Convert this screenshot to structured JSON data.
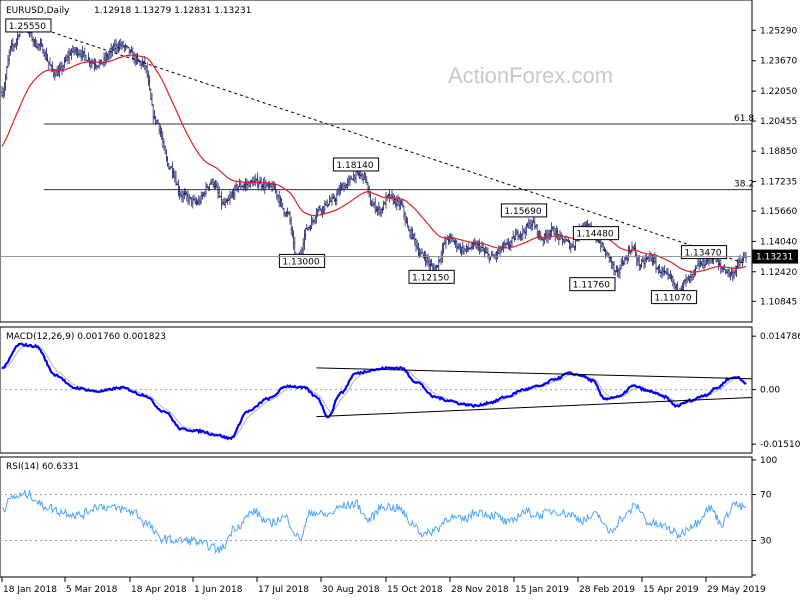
{
  "chart_data": [
    {
      "type": "candlestick",
      "panel": "price",
      "symbol": "EURUSD,Daily",
      "ohlc_text": "1.12918 1.13279 1.12831 1.13231",
      "current_price": 1.13231,
      "current_price_label": "1.13231",
      "ylim": [
        1.0985,
        1.268
      ],
      "y_ticks": [
        "1.25290",
        "1.23670",
        "1.22050",
        "1.20455",
        "1.18850",
        "1.17235",
        "1.15660",
        "1.14040",
        "1.12420",
        "1.10845"
      ],
      "x_ticks": [
        "18 Jan 2018",
        "5 Mar 2018",
        "18 Apr 2018",
        "1 Jun 2018",
        "17 Jul 2018",
        "30 Aug 2018",
        "15 Oct 2018",
        "28 Nov 2018",
        "15 Jan 2019",
        "28 Feb 2019",
        "15 Apr 2019",
        "29 May 2019"
      ],
      "fib_levels": [
        {
          "label": "61.8",
          "value": 1.203
        },
        {
          "label": "38.2",
          "value": 1.168
        }
      ],
      "trendline": {
        "from": {
          "bar": 18,
          "value": 1.257
        },
        "to": {
          "bar": 620,
          "value": 1.1285
        }
      },
      "annotations": [
        {
          "label": "1.25550",
          "bar": 22,
          "value": 1.2555
        },
        {
          "label": "1.13000",
          "bar": 250,
          "value": 1.13
        },
        {
          "label": "1.18140",
          "bar": 295,
          "value": 1.1814
        },
        {
          "label": "1.12150",
          "bar": 358,
          "value": 1.1215
        },
        {
          "label": "1.15690",
          "bar": 435,
          "value": 1.1569
        },
        {
          "label": "1.14480",
          "bar": 495,
          "value": 1.1448
        },
        {
          "label": "1.11760",
          "bar": 492,
          "value": 1.1176
        },
        {
          "label": "1.13470",
          "bar": 585,
          "value": 1.1347
        },
        {
          "label": "1.11070",
          "bar": 560,
          "value": 1.1107
        }
      ],
      "anchors": [
        [
          0,
          1.22
        ],
        [
          8,
          1.244
        ],
        [
          18,
          1.2555
        ],
        [
          30,
          1.245
        ],
        [
          45,
          1.23
        ],
        [
          60,
          1.242
        ],
        [
          80,
          1.235
        ],
        [
          98,
          1.245
        ],
        [
          118,
          1.235
        ],
        [
          128,
          1.205
        ],
        [
          140,
          1.18
        ],
        [
          150,
          1.165
        ],
        [
          162,
          1.161
        ],
        [
          175,
          1.172
        ],
        [
          185,
          1.16
        ],
        [
          198,
          1.17
        ],
        [
          212,
          1.172
        ],
        [
          225,
          1.169
        ],
        [
          238,
          1.155
        ],
        [
          246,
          1.13
        ],
        [
          255,
          1.148
        ],
        [
          265,
          1.158
        ],
        [
          275,
          1.162
        ],
        [
          285,
          1.17
        ],
        [
          295,
          1.176
        ],
        [
          302,
          1.175
        ],
        [
          308,
          1.16
        ],
        [
          315,
          1.157
        ],
        [
          322,
          1.164
        ],
        [
          332,
          1.16
        ],
        [
          340,
          1.145
        ],
        [
          350,
          1.133
        ],
        [
          360,
          1.126
        ],
        [
          372,
          1.142
        ],
        [
          385,
          1.136
        ],
        [
          395,
          1.138
        ],
        [
          408,
          1.132
        ],
        [
          420,
          1.138
        ],
        [
          432,
          1.145
        ],
        [
          442,
          1.15
        ],
        [
          450,
          1.142
        ],
        [
          458,
          1.146
        ],
        [
          468,
          1.141
        ],
        [
          475,
          1.138
        ],
        [
          485,
          1.15
        ],
        [
          495,
          1.142
        ],
        [
          505,
          1.133
        ],
        [
          512,
          1.123
        ],
        [
          518,
          1.13
        ],
        [
          525,
          1.137
        ],
        [
          532,
          1.128
        ],
        [
          540,
          1.132
        ],
        [
          548,
          1.125
        ],
        [
          556,
          1.121
        ],
        [
          563,
          1.115
        ],
        [
          572,
          1.12
        ],
        [
          582,
          1.128
        ],
        [
          592,
          1.132
        ],
        [
          600,
          1.126
        ],
        [
          608,
          1.123
        ],
        [
          615,
          1.129
        ],
        [
          620,
          1.1323
        ]
      ]
    },
    {
      "type": "line",
      "panel": "macd",
      "title": "MACD(12,26,9) 0.001760 0.001823",
      "ylim": [
        -0.017,
        0.0165
      ],
      "y_ticks": [
        "0.014786",
        "0.00",
        "-0.015107"
      ],
      "zero_label": "0.00",
      "macd_anchors": [
        [
          0,
          0.006
        ],
        [
          15,
          0.0125
        ],
        [
          28,
          0.012
        ],
        [
          45,
          0.004
        ],
        [
          60,
          0.0005
        ],
        [
          80,
          -0.0005
        ],
        [
          100,
          0.0005
        ],
        [
          118,
          -0.0015
        ],
        [
          135,
          -0.006
        ],
        [
          150,
          -0.011
        ],
        [
          165,
          -0.0115
        ],
        [
          178,
          -0.0125
        ],
        [
          190,
          -0.0135
        ],
        [
          205,
          -0.006
        ],
        [
          222,
          -0.0025
        ],
        [
          238,
          0.001
        ],
        [
          252,
          0.0005
        ],
        [
          262,
          -0.002
        ],
        [
          272,
          -0.0075
        ],
        [
          282,
          -0.001
        ],
        [
          295,
          0.0045
        ],
        [
          310,
          0.0055
        ],
        [
          322,
          0.006
        ],
        [
          332,
          0.006
        ],
        [
          346,
          0.002
        ],
        [
          360,
          -0.002
        ],
        [
          372,
          -0.003
        ],
        [
          384,
          -0.004
        ],
        [
          395,
          -0.0045
        ],
        [
          408,
          -0.0035
        ],
        [
          420,
          -0.002
        ],
        [
          435,
          0.0
        ],
        [
          448,
          0.001
        ],
        [
          462,
          0.003
        ],
        [
          472,
          0.0045
        ],
        [
          482,
          0.004
        ],
        [
          492,
          0.0025
        ],
        [
          502,
          -0.0025
        ],
        [
          514,
          -0.002
        ],
        [
          526,
          0.001
        ],
        [
          540,
          -0.0005
        ],
        [
          552,
          -0.002
        ],
        [
          562,
          -0.0045
        ],
        [
          574,
          -0.003
        ],
        [
          586,
          -0.0015
        ],
        [
          596,
          0.0005
        ],
        [
          606,
          0.003
        ],
        [
          612,
          0.0035
        ],
        [
          620,
          0.00176
        ]
      ],
      "trendlines": [
        {
          "from": {
            "bar": 262,
            "value": 0.006
          },
          "to": {
            "bar": 620,
            "value": 0.003
          }
        },
        {
          "from": {
            "bar": 262,
            "value": -0.0075
          },
          "to": {
            "bar": 620,
            "value": -0.0022
          }
        }
      ]
    },
    {
      "type": "line",
      "panel": "rsi",
      "title": "RSI(14) 60.6331",
      "ylim": [
        0,
        100
      ],
      "y_ticks": [
        "100",
        "70",
        "30",
        "0"
      ],
      "levels": [
        70,
        30
      ],
      "rsi_anchors": [
        [
          0,
          58
        ],
        [
          10,
          68
        ],
        [
          22,
          70
        ],
        [
          35,
          60
        ],
        [
          50,
          55
        ],
        [
          65,
          52
        ],
        [
          80,
          60
        ],
        [
          95,
          58
        ],
        [
          110,
          55
        ],
        [
          120,
          45
        ],
        [
          132,
          32
        ],
        [
          145,
          30
        ],
        [
          158,
          30
        ],
        [
          170,
          26
        ],
        [
          182,
          22
        ],
        [
          195,
          42
        ],
        [
          210,
          55
        ],
        [
          222,
          45
        ],
        [
          236,
          50
        ],
        [
          248,
          32
        ],
        [
          258,
          55
        ],
        [
          270,
          52
        ],
        [
          285,
          60
        ],
        [
          295,
          62
        ],
        [
          305,
          48
        ],
        [
          318,
          60
        ],
        [
          330,
          58
        ],
        [
          342,
          45
        ],
        [
          352,
          35
        ],
        [
          362,
          40
        ],
        [
          372,
          50
        ],
        [
          384,
          48
        ],
        [
          396,
          55
        ],
        [
          410,
          52
        ],
        [
          422,
          45
        ],
        [
          435,
          55
        ],
        [
          448,
          52
        ],
        [
          460,
          56
        ],
        [
          472,
          53
        ],
        [
          484,
          48
        ],
        [
          496,
          52
        ],
        [
          506,
          38
        ],
        [
          518,
          50
        ],
        [
          528,
          60
        ],
        [
          540,
          45
        ],
        [
          552,
          42
        ],
        [
          564,
          35
        ],
        [
          576,
          44
        ],
        [
          590,
          58
        ],
        [
          600,
          45
        ],
        [
          610,
          62
        ],
        [
          618,
          58
        ],
        [
          620,
          60.6331
        ]
      ]
    }
  ],
  "watermark": "ActionForex.com",
  "colors": {
    "candles": "#1a1f6b",
    "ema": "#e02020",
    "macd": "#0000ff",
    "signal": "#c0c0c0",
    "rsi": "#4da6ff",
    "grid": "#a0a0a0",
    "label_bg": "#ffffff",
    "label_border": "#000000"
  }
}
